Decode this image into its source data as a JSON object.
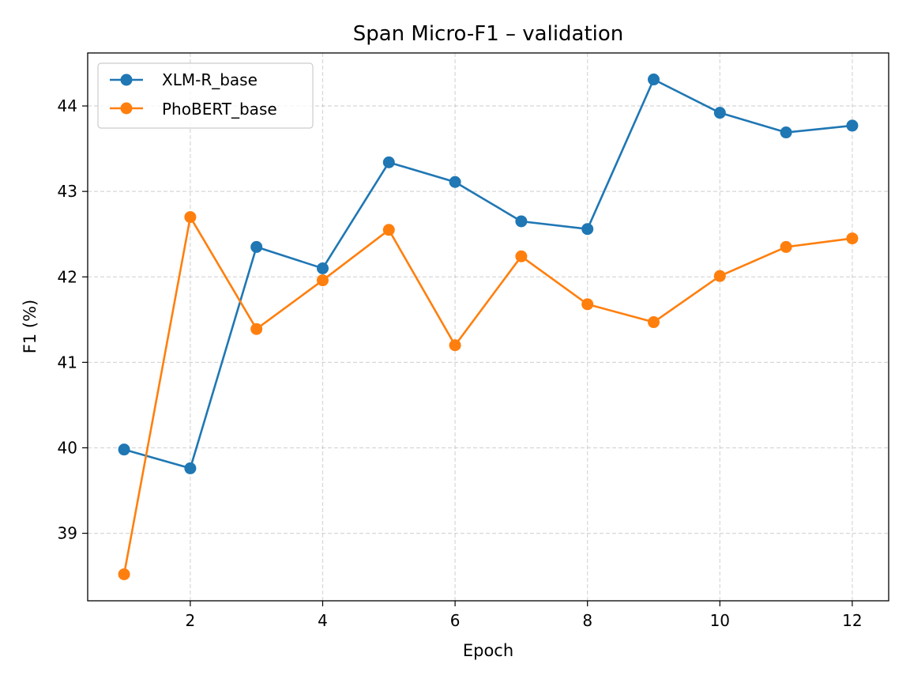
{
  "chart_data": {
    "type": "line",
    "title": "Span Micro-F1 – validation",
    "xlabel": "Epoch",
    "ylabel": "F1 (%)",
    "x": [
      1,
      2,
      3,
      4,
      5,
      6,
      7,
      8,
      9,
      10,
      11,
      12
    ],
    "xlim": [
      0.45,
      12.55
    ],
    "ylim": [
      38.21,
      44.62
    ],
    "xticks": [
      2,
      4,
      6,
      8,
      10,
      12
    ],
    "yticks": [
      39,
      40,
      41,
      42,
      43,
      44
    ],
    "grid": true,
    "legend_position": "upper-left",
    "series": [
      {
        "name": "XLM-R_base",
        "color": "#1f77b4",
        "values": [
          39.98,
          39.76,
          42.35,
          42.1,
          43.34,
          43.11,
          42.65,
          42.56,
          44.31,
          43.92,
          43.69,
          43.77
        ]
      },
      {
        "name": "PhoBERT_base",
        "color": "#ff7f0e",
        "values": [
          38.52,
          42.7,
          41.39,
          41.96,
          42.55,
          41.2,
          42.24,
          41.68,
          41.47,
          42.01,
          42.35,
          42.45
        ]
      }
    ]
  }
}
